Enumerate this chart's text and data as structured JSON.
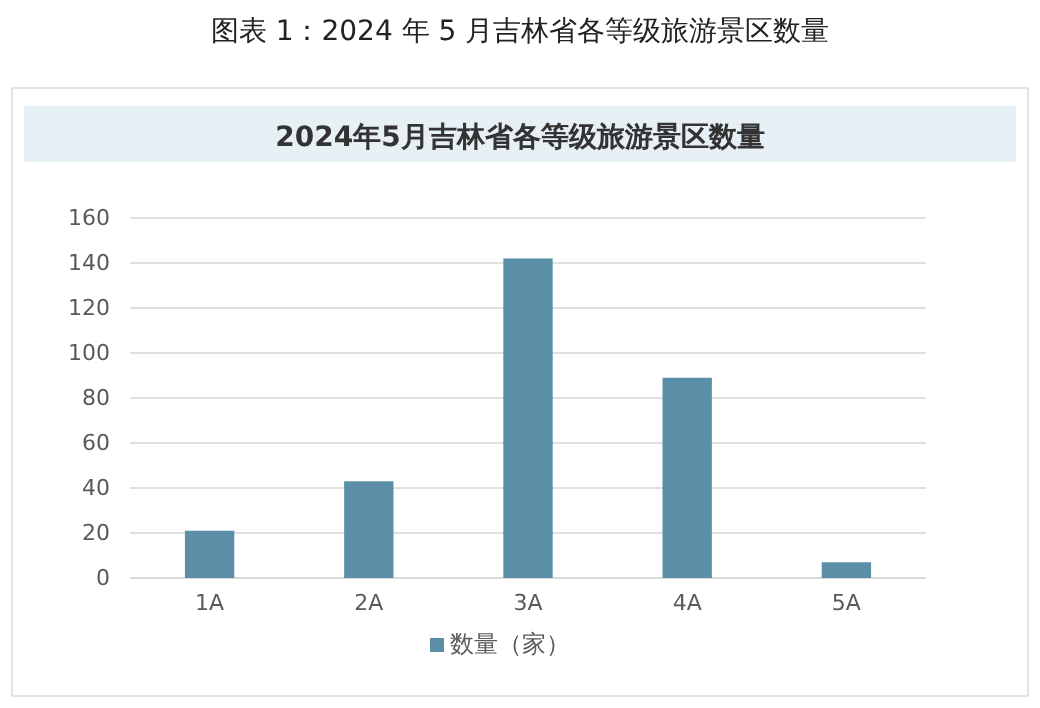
{
  "chart_data": {
    "type": "bar",
    "title": "2024年5月吉林省各等级旅游景区数量",
    "annotations": [
      "图表 1：2024 年 5 月吉林省各等级旅游景区数量"
    ],
    "categories": [
      "1A",
      "2A",
      "3A",
      "4A",
      "5A"
    ],
    "series": [
      {
        "name": "数量（家）",
        "color": "#5b8fa8",
        "values": [
          21,
          43,
          142,
          89,
          7
        ]
      }
    ],
    "ylim": [
      0,
      160
    ],
    "yticks": [
      0,
      20,
      40,
      60,
      80,
      100,
      120,
      140,
      160
    ],
    "grid": "y",
    "legend": "bottom"
  }
}
